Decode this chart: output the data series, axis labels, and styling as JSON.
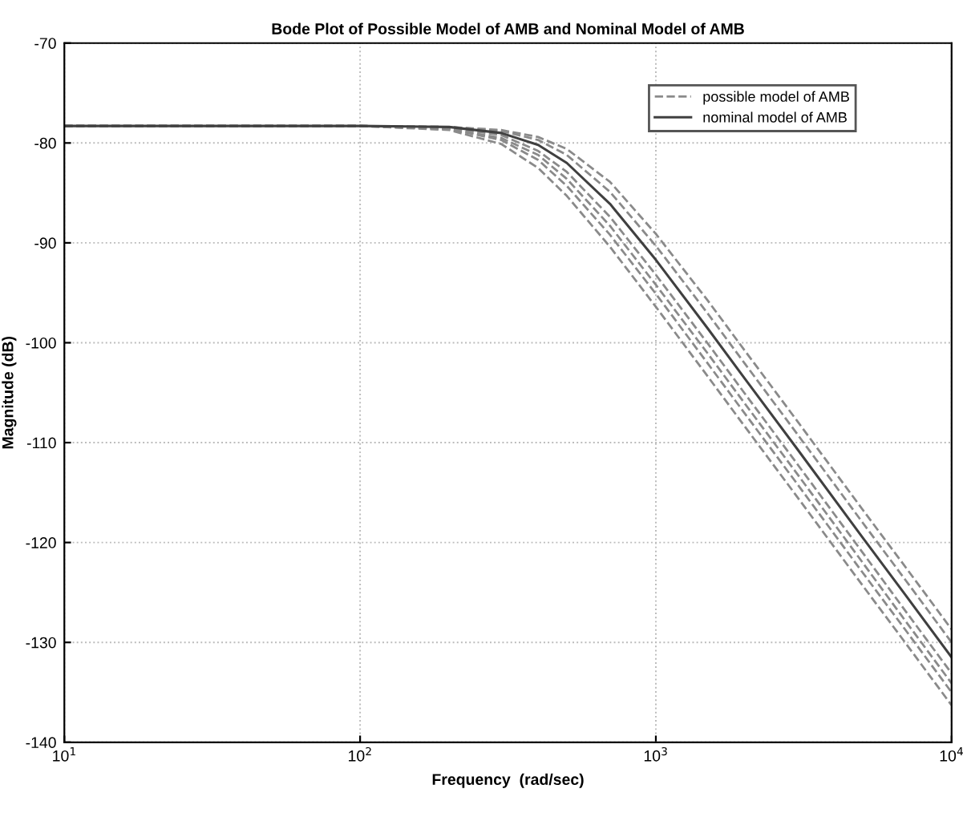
{
  "chart_data": {
    "type": "line",
    "title": "Bode Plot of Possible Model of AMB and Nominal Model of AMB",
    "xlabel": "Frequency  (rad/sec)",
    "ylabel": "Magnitude (dB)",
    "x": [
      10,
      30,
      100,
      200,
      300,
      400,
      500,
      700,
      1000,
      1500,
      2000,
      3000,
      5000,
      7000,
      10000
    ],
    "series": [
      {
        "name": "possible model of AMB",
        "color": "#8a8a8a",
        "line_style": "dashed",
        "values": [
          -78.3,
          -78.3,
          -78.3,
          -78.4,
          -78.7,
          -79.4,
          -80.6,
          -83.9,
          -89.1,
          -95.8,
          -100.8,
          -107.8,
          -116.7,
          -122.5,
          -128.7
        ]
      },
      {
        "color": "#8a8a8a",
        "line_style": "dashed",
        "values": [
          -78.3,
          -78.3,
          -78.3,
          -78.4,
          -78.8,
          -79.7,
          -81.2,
          -84.9,
          -90.3,
          -97.1,
          -102.1,
          -109.1,
          -118.0,
          -123.8,
          -130.0
        ]
      },
      {
        "color": "#8a8a8a",
        "line_style": "dashed",
        "values": [
          -78.3,
          -78.3,
          -78.3,
          -78.5,
          -79.2,
          -80.8,
          -82.9,
          -87.4,
          -93.2,
          -100.1,
          -105.1,
          -112.1,
          -121.0,
          -126.9,
          -133.1
        ]
      },
      {
        "color": "#8a8a8a",
        "line_style": "dashed",
        "values": [
          -78.3,
          -78.3,
          -78.3,
          -78.6,
          -79.5,
          -81.2,
          -83.6,
          -88.3,
          -94.2,
          -101.1,
          -106.1,
          -113.1,
          -122.0,
          -127.9,
          -134.1
        ]
      },
      {
        "color": "#8a8a8a",
        "line_style": "dashed",
        "values": [
          -78.3,
          -78.3,
          -78.3,
          -78.6,
          -79.7,
          -81.7,
          -84.3,
          -89.2,
          -95.1,
          -102.1,
          -107.1,
          -114.1,
          -123.0,
          -128.8,
          -135.0
        ]
      },
      {
        "color": "#8a8a8a",
        "line_style": "dashed",
        "values": [
          -78.3,
          -78.3,
          -78.3,
          -78.7,
          -80.1,
          -82.5,
          -85.3,
          -90.4,
          -96.4,
          -103.4,
          -108.4,
          -115.4,
          -124.3,
          -130.1,
          -136.3
        ]
      },
      {
        "name": "nominal model of AMB",
        "color": "#404040",
        "line_style": "solid",
        "values": [
          -78.3,
          -78.3,
          -78.3,
          -78.4,
          -79.0,
          -80.2,
          -82.0,
          -86.1,
          -91.7,
          -98.6,
          -103.6,
          -110.6,
          -119.5,
          -125.3,
          -131.5
        ]
      }
    ],
    "log": "x",
    "xlim": [
      10,
      10000
    ],
    "xticks": [
      {
        "value": 10,
        "label": "10$^{1}$"
      },
      {
        "value": 100,
        "label": "10$^{2}$"
      },
      {
        "value": 1000,
        "label": "10$^{3}$"
      },
      {
        "value": 10000,
        "label": "10$^{4}$"
      }
    ],
    "ylim": [
      -140,
      -70
    ],
    "yticks": [
      -140,
      -130,
      -120,
      -110,
      -100,
      -90,
      -80,
      -70
    ],
    "grid": true,
    "legend": "top right",
    "marker": "none"
  }
}
